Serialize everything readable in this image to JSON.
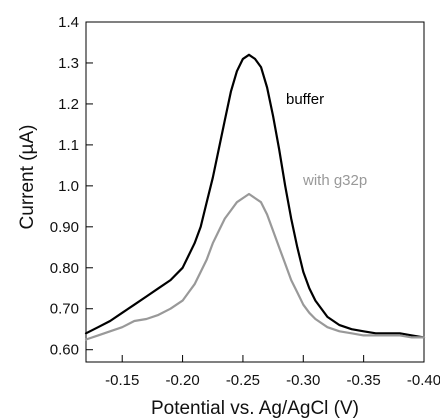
{
  "chart_data": {
    "type": "line",
    "xlabel": "Potential vs. Ag/AgCl (V)",
    "ylabel": "Current (µA)",
    "xlim": [
      -0.12,
      -0.4
    ],
    "ylim": [
      0.57,
      1.4
    ],
    "x_reversed": true,
    "x_ticks": [
      "-0.15",
      "-0.20",
      "-0.25",
      "-0.30",
      "-0.35",
      "-0.40"
    ],
    "x_tick_values": [
      -0.15,
      -0.2,
      -0.25,
      -0.3,
      -0.35,
      -0.4
    ],
    "y_ticks": [
      "0.60",
      "0.70",
      "0.80",
      "0.90",
      "1.0",
      "1.1",
      "1.2",
      "1.3",
      "1.4"
    ],
    "y_tick_values": [
      0.6,
      0.7,
      0.8,
      0.9,
      1.0,
      1.1,
      1.2,
      1.3,
      1.4
    ],
    "grid": false,
    "series": [
      {
        "name": "buffer",
        "color": "#000000",
        "x": [
          -0.12,
          -0.13,
          -0.14,
          -0.15,
          -0.16,
          -0.17,
          -0.18,
          -0.19,
          -0.2,
          -0.205,
          -0.21,
          -0.215,
          -0.22,
          -0.225,
          -0.23,
          -0.235,
          -0.24,
          -0.245,
          -0.25,
          -0.255,
          -0.26,
          -0.265,
          -0.27,
          -0.275,
          -0.28,
          -0.285,
          -0.29,
          -0.295,
          -0.3,
          -0.305,
          -0.31,
          -0.32,
          -0.33,
          -0.34,
          -0.35,
          -0.36,
          -0.37,
          -0.38,
          -0.39,
          -0.4
        ],
        "y": [
          0.64,
          0.655,
          0.67,
          0.69,
          0.71,
          0.73,
          0.75,
          0.77,
          0.8,
          0.83,
          0.86,
          0.9,
          0.96,
          1.02,
          1.09,
          1.16,
          1.23,
          1.28,
          1.31,
          1.32,
          1.31,
          1.29,
          1.24,
          1.17,
          1.09,
          1.0,
          0.92,
          0.85,
          0.79,
          0.75,
          0.72,
          0.68,
          0.66,
          0.65,
          0.645,
          0.64,
          0.64,
          0.64,
          0.635,
          0.63
        ]
      },
      {
        "name": "with g32p",
        "color": "#999999",
        "x": [
          -0.12,
          -0.13,
          -0.14,
          -0.15,
          -0.16,
          -0.17,
          -0.18,
          -0.19,
          -0.2,
          -0.205,
          -0.21,
          -0.215,
          -0.22,
          -0.225,
          -0.23,
          -0.235,
          -0.24,
          -0.245,
          -0.25,
          -0.255,
          -0.26,
          -0.265,
          -0.27,
          -0.275,
          -0.28,
          -0.285,
          -0.29,
          -0.295,
          -0.3,
          -0.305,
          -0.31,
          -0.32,
          -0.33,
          -0.34,
          -0.35,
          -0.36,
          -0.37,
          -0.38,
          -0.39,
          -0.4
        ],
        "y": [
          0.625,
          0.635,
          0.645,
          0.655,
          0.67,
          0.675,
          0.685,
          0.7,
          0.72,
          0.74,
          0.76,
          0.79,
          0.82,
          0.86,
          0.89,
          0.92,
          0.94,
          0.96,
          0.97,
          0.98,
          0.97,
          0.96,
          0.93,
          0.89,
          0.85,
          0.81,
          0.77,
          0.74,
          0.71,
          0.69,
          0.675,
          0.655,
          0.645,
          0.64,
          0.635,
          0.635,
          0.635,
          0.635,
          0.63,
          0.63
        ]
      }
    ]
  }
}
